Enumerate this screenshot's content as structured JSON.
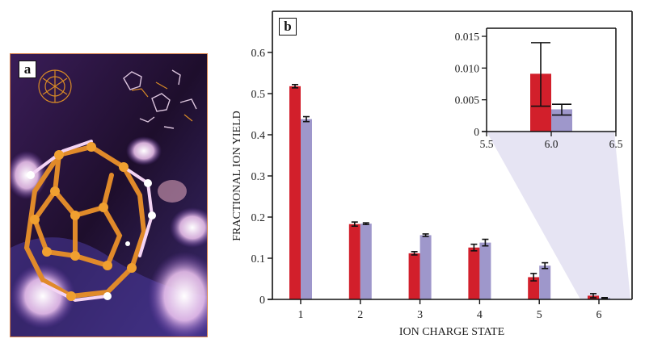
{
  "figure": {
    "panel_a": {
      "label": "a",
      "image_description": "Rendered ball-and-stick molecular model of fullerene (C60) cages in orange and white over a dark purple background, with smaller molecular fragments in the upper area",
      "colors": {
        "frame": "#d9824a",
        "background": "#2a1438",
        "carbon": "#e08a2a",
        "bond_highlight": "#f3d8f0"
      }
    },
    "panel_b": {
      "label": "b"
    }
  },
  "chart_data": [
    {
      "id": "main",
      "type": "bar",
      "title": "",
      "xlabel": "ION CHARGE STATE",
      "ylabel": "FRACTIONAL ION YIELD",
      "categories": [
        "1",
        "2",
        "3",
        "4",
        "5",
        "6"
      ],
      "ylim": [
        0,
        0.65
      ],
      "yticks": [
        0,
        0.1,
        0.2,
        0.3,
        0.4,
        0.5,
        0.6
      ],
      "ytick_labels": [
        "0",
        "0.1",
        "0.2",
        "0.3",
        "0.4",
        "0.5",
        "0.6"
      ],
      "grid": false,
      "legend": "none",
      "series": [
        {
          "name": "series-red",
          "color": "#d21f2b",
          "values": [
            0.518,
            0.183,
            0.112,
            0.126,
            0.054,
            0.009
          ],
          "errors": [
            0.004,
            0.005,
            0.004,
            0.008,
            0.009,
            0.005
          ]
        },
        {
          "name": "series-lavender",
          "color": "#9e97cb",
          "values": [
            0.438,
            0.184,
            0.156,
            0.138,
            0.082,
            0.0035
          ],
          "errors": [
            0.006,
            0.002,
            0.003,
            0.008,
            0.007,
            0.0008
          ]
        }
      ],
      "zoom_region_color": "#e6e4f3"
    },
    {
      "id": "inset",
      "type": "bar",
      "title": "",
      "xlabel": "",
      "ylabel": "",
      "xlim": [
        5.5,
        6.5
      ],
      "xticks": [
        5.5,
        6.0,
        6.5
      ],
      "xtick_labels": [
        "5.5",
        "6.0",
        "6.5"
      ],
      "ylim": [
        0,
        0.016
      ],
      "yticks": [
        0,
        0.005,
        0.01,
        0.015
      ],
      "ytick_labels": [
        "0",
        "0.005",
        "0.010",
        "0.015"
      ],
      "grid": false,
      "legend": "none",
      "series": [
        {
          "name": "series-red",
          "color": "#d21f2b",
          "x": 5.92,
          "value": 0.0091,
          "error_low": 0.004,
          "error_high": 0.014
        },
        {
          "name": "series-lavender",
          "color": "#9e97cb",
          "x": 6.08,
          "value": 0.0035,
          "error_low": 0.0026,
          "error_high": 0.0043
        }
      ]
    }
  ]
}
